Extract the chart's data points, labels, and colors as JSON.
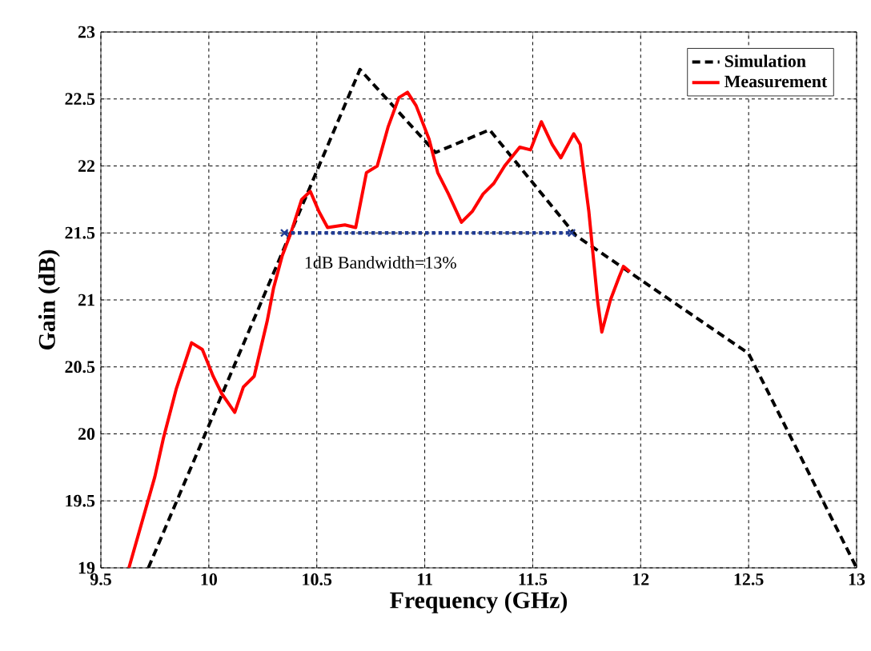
{
  "chart_data": {
    "type": "line",
    "xlabel": "Frequency (GHz)",
    "ylabel": "Gain (dB)",
    "xlim": [
      9.5,
      13
    ],
    "ylim": [
      19,
      23
    ],
    "xticks": [
      9.5,
      10,
      10.5,
      11,
      11.5,
      12,
      12.5,
      13
    ],
    "yticks": [
      19,
      19.5,
      20,
      20.5,
      21,
      21.5,
      22,
      22.5,
      23
    ],
    "grid": true,
    "legend": "top right",
    "annotations": [
      "1dB Bandwidth=13%"
    ],
    "series": [
      {
        "name": "Simulation",
        "color": "#000000",
        "line_style": "dashed",
        "marker": "none",
        "x": [
          9.72,
          10.7,
          11.05,
          11.3,
          11.7,
          12.0,
          12.5,
          13
        ],
        "values": [
          19,
          22.72,
          22.1,
          22.27,
          21.48,
          21.15,
          20.6,
          19
        ]
      },
      {
        "name": "Measurement",
        "color": "#ff0000",
        "line_style": "solid",
        "marker": "none",
        "x": [
          9.63,
          9.75,
          9.79,
          9.85,
          9.92,
          9.97,
          10.02,
          10.06,
          10.12,
          10.16,
          10.21,
          10.27,
          10.3,
          10.34,
          10.38,
          10.43,
          10.47,
          10.51,
          10.55,
          10.63,
          10.68,
          10.73,
          10.78,
          10.83,
          10.88,
          10.92,
          10.96,
          11.02,
          11.06,
          11.11,
          11.17,
          11.22,
          11.27,
          11.32,
          11.37,
          11.44,
          11.49,
          11.54,
          11.59,
          11.63,
          11.69,
          11.72,
          11.76,
          11.8,
          11.82,
          11.86,
          11.9,
          11.92,
          11.95
        ],
        "values": [
          19,
          19.68,
          19.97,
          20.34,
          20.68,
          20.63,
          20.43,
          20.3,
          20.16,
          20.35,
          20.43,
          20.84,
          21.09,
          21.33,
          21.5,
          21.75,
          21.81,
          21.66,
          21.54,
          21.56,
          21.54,
          21.95,
          22.0,
          22.29,
          22.51,
          22.55,
          22.45,
          22.2,
          21.95,
          21.79,
          21.58,
          21.66,
          21.79,
          21.87,
          22.0,
          22.14,
          22.12,
          22.33,
          22.16,
          22.06,
          22.24,
          22.16,
          21.66,
          21.0,
          20.76,
          21.0,
          21.17,
          21.25,
          21.21
        ]
      },
      {
        "color": "#1f3a93",
        "line_style": "dotted",
        "marker": "cross",
        "x": [
          10.35,
          11.68
        ],
        "values": [
          21.5,
          21.5
        ]
      }
    ]
  }
}
